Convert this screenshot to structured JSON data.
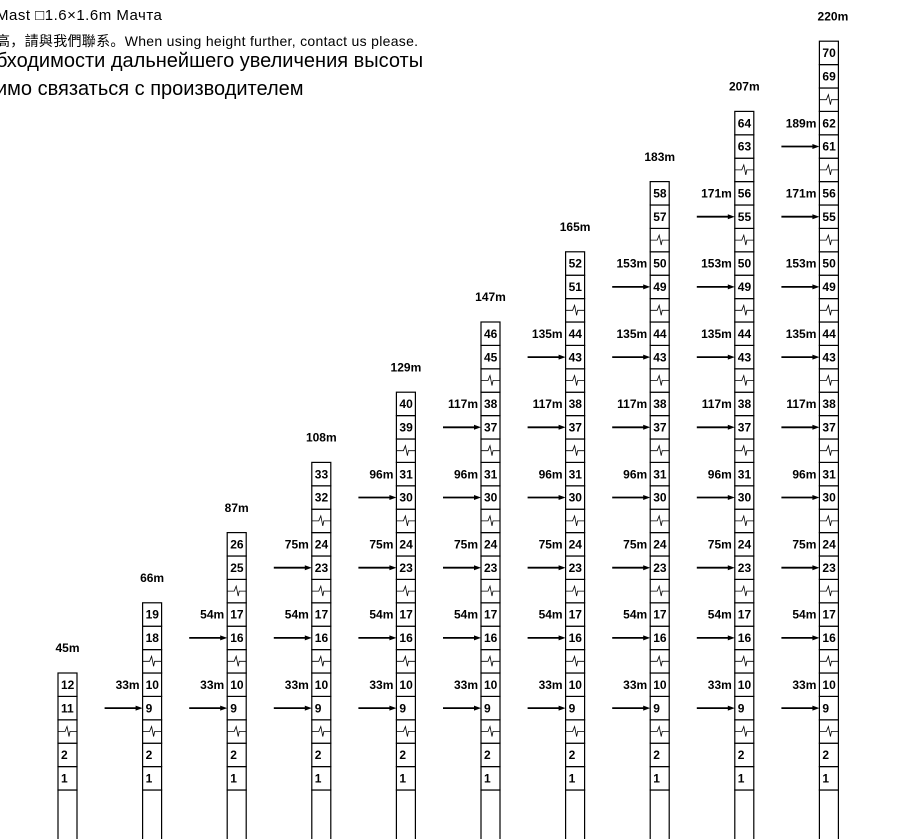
{
  "header": {
    "lines": [
      "Mast  □1.6×1.6m  Мачта",
      "高，請與我們聯系。When using height further, contact us please.",
      "бходимости дальнейшего увеличения высоты",
      "имо связаться с производителем"
    ]
  },
  "columns": [
    {
      "height": "45m",
      "cells": [
        "1",
        "2",
        null,
        "11",
        "12"
      ],
      "ties": []
    },
    {
      "height": "66m",
      "cells": [
        "1",
        "2",
        null,
        "9",
        "10",
        null,
        "18",
        "19"
      ],
      "ties": [
        "33m"
      ]
    },
    {
      "height": "87m",
      "cells": [
        "1",
        "2",
        null,
        "9",
        "10",
        null,
        "16",
        "17",
        null,
        "25",
        "26"
      ],
      "ties": [
        "33m",
        "54m"
      ]
    },
    {
      "height": "108m",
      "cells": [
        "1",
        "2",
        null,
        "9",
        "10",
        null,
        "16",
        "17",
        null,
        "23",
        "24",
        null,
        "32",
        "33"
      ],
      "ties": [
        "33m",
        "54m",
        "75m"
      ]
    },
    {
      "height": "129m",
      "cells": [
        "1",
        "2",
        null,
        "9",
        "10",
        null,
        "16",
        "17",
        null,
        "23",
        "24",
        null,
        "30",
        "31",
        null,
        "39",
        "40"
      ],
      "ties": [
        "33m",
        "54m",
        "75m",
        "96m"
      ]
    },
    {
      "height": "147m",
      "cells": [
        "1",
        "2",
        null,
        "9",
        "10",
        null,
        "16",
        "17",
        null,
        "23",
        "24",
        null,
        "30",
        "31",
        null,
        "37",
        "38",
        null,
        "45",
        "46"
      ],
      "ties": [
        "33m",
        "54m",
        "75m",
        "96m",
        "117m"
      ]
    },
    {
      "height": "165m",
      "cells": [
        "1",
        "2",
        null,
        "9",
        "10",
        null,
        "16",
        "17",
        null,
        "23",
        "24",
        null,
        "30",
        "31",
        null,
        "37",
        "38",
        null,
        "43",
        "44",
        null,
        "51",
        "52"
      ],
      "ties": [
        "33m",
        "54m",
        "75m",
        "96m",
        "117m",
        "135m"
      ]
    },
    {
      "height": "183m",
      "cells": [
        "1",
        "2",
        null,
        "9",
        "10",
        null,
        "16",
        "17",
        null,
        "23",
        "24",
        null,
        "30",
        "31",
        null,
        "37",
        "38",
        null,
        "43",
        "44",
        null,
        "49",
        "50",
        null,
        "57",
        "58"
      ],
      "ties": [
        "33m",
        "54m",
        "75m",
        "96m",
        "117m",
        "135m",
        "153m"
      ]
    },
    {
      "height": "207m",
      "cells": [
        "1",
        "2",
        null,
        "9",
        "10",
        null,
        "16",
        "17",
        null,
        "23",
        "24",
        null,
        "30",
        "31",
        null,
        "37",
        "38",
        null,
        "43",
        "44",
        null,
        "49",
        "50",
        null,
        "55",
        "56",
        null,
        "63",
        "64"
      ],
      "ties": [
        "33m",
        "54m",
        "75m",
        "96m",
        "117m",
        "135m",
        "153m",
        "171m"
      ]
    },
    {
      "height": "220m",
      "cells": [
        "1",
        "2",
        null,
        "9",
        "10",
        null,
        "16",
        "17",
        null,
        "23",
        "24",
        null,
        "30",
        "31",
        null,
        "37",
        "38",
        null,
        "43",
        "44",
        null,
        "49",
        "50",
        null,
        "55",
        "56",
        null,
        "61",
        "62",
        null,
        "69",
        "70"
      ],
      "ties": [
        "33m",
        "54m",
        "75m",
        "96m",
        "117m",
        "135m",
        "153m",
        "171m",
        "189m"
      ]
    }
  ]
}
